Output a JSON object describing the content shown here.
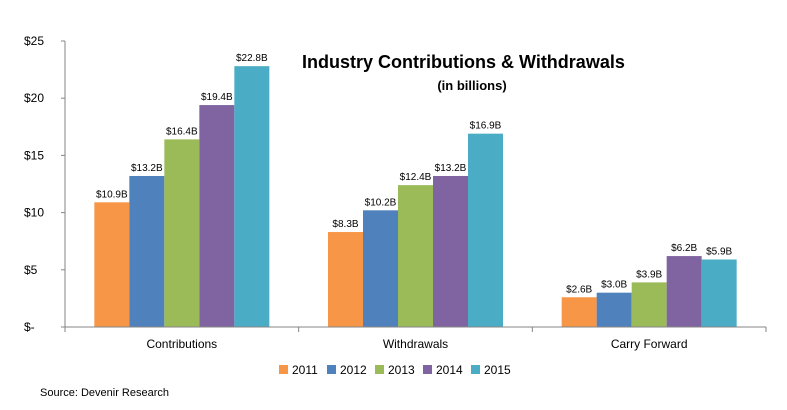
{
  "chart_data": {
    "type": "bar",
    "title": "Industry Contributions  & Withdrawals",
    "subtitle": "(in billions)",
    "categories": [
      "Contributions",
      "Withdrawals",
      "Carry Forward"
    ],
    "series": [
      {
        "name": "2011",
        "color": "#F79646",
        "values": [
          10.9,
          8.3,
          2.6
        ],
        "labels": [
          "$10.9B",
          "$8.3B",
          "$2.6B"
        ]
      },
      {
        "name": "2012",
        "color": "#4F81BD",
        "values": [
          13.2,
          10.2,
          3.0
        ],
        "labels": [
          "$13.2B",
          "$10.2B",
          "$3.0B"
        ]
      },
      {
        "name": "2013",
        "color": "#9BBB59",
        "values": [
          16.4,
          12.4,
          3.9
        ],
        "labels": [
          "$16.4B",
          "$12.4B",
          "$3.9B"
        ]
      },
      {
        "name": "2014",
        "color": "#8064A2",
        "values": [
          19.4,
          13.2,
          6.2
        ],
        "labels": [
          "$19.4B",
          "$13.2B",
          "$6.2B"
        ]
      },
      {
        "name": "2015",
        "color": "#4BACC6",
        "values": [
          22.8,
          16.9,
          5.9
        ],
        "labels": [
          "$22.8B",
          "$16.9B",
          "$5.9B"
        ]
      }
    ],
    "ylim": [
      0,
      25
    ],
    "yticks": [
      0,
      5,
      10,
      15,
      20,
      25
    ],
    "ytick_labels": [
      "$-",
      "$5",
      "$10",
      "$15",
      "$20",
      "$25"
    ],
    "grid": false,
    "legend_position": "bottom"
  },
  "source": "Source: Devenir Research"
}
